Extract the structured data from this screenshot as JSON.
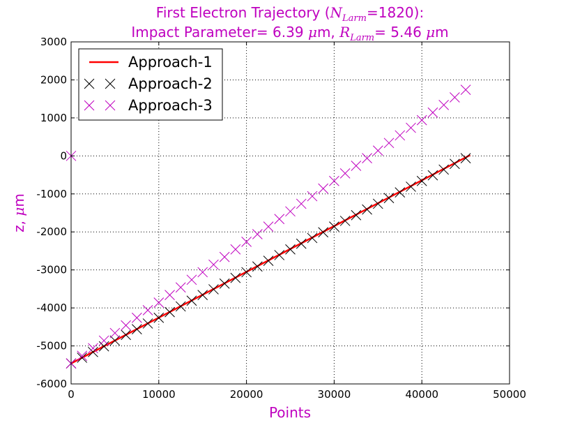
{
  "chart_data": {
    "type": "line",
    "title": {
      "line1_prefix": "First Electron Trajectory (",
      "line1_var": "N",
      "line1_sub": "Larm",
      "line1_eq": "=",
      "line1_value": "1820",
      "line1_suffix": "):",
      "line2_prefix": "Impact Parameter= 6.39 ",
      "line2_unit1_mu": "μ",
      "line2_unit1_m": "m, ",
      "line2_var": "R",
      "line2_sub": "Larm",
      "line2_value": "= 5.46 ",
      "line2_unit2_mu": "μ",
      "line2_unit2_m": "m"
    },
    "xlabel": "Points",
    "ylabel": {
      "text": "z, ",
      "mu": "μ",
      "unit": "m"
    },
    "xlim": [
      0,
      50000
    ],
    "ylim": [
      -6000,
      3000
    ],
    "xticks": [
      0,
      10000,
      20000,
      30000,
      40000,
      50000
    ],
    "yticks": [
      -6000,
      -5000,
      -4000,
      -3000,
      -2000,
      -1000,
      0,
      1000,
      2000,
      3000
    ],
    "grid": true,
    "legend_position": "top-left",
    "series": [
      {
        "name": "Approach-1",
        "style": "line",
        "color": "#ff0000",
        "x": [
          0,
          45500
        ],
        "y": [
          -5460,
          20
        ]
      },
      {
        "name": "Approach-2",
        "style": "x-marker",
        "color": "#000000",
        "x": [
          0,
          1250,
          2500,
          3750,
          5000,
          6250,
          7500,
          8750,
          10000,
          11250,
          12500,
          13750,
          15000,
          16250,
          17500,
          18750,
          20000,
          21250,
          22500,
          23750,
          25000,
          26250,
          27500,
          28750,
          30000,
          31250,
          32500,
          33750,
          35000,
          36250,
          37500,
          38750,
          40000,
          41250,
          42500,
          43750,
          45000
        ],
        "y": [
          -5460,
          -5310,
          -5160,
          -5010,
          -4860,
          -4710,
          -4560,
          -4410,
          -4260,
          -4110,
          -3960,
          -3810,
          -3660,
          -3510,
          -3360,
          -3210,
          -3060,
          -2910,
          -2760,
          -2610,
          -2460,
          -2310,
          -2160,
          -2010,
          -1860,
          -1710,
          -1560,
          -1410,
          -1260,
          -1110,
          -960,
          -810,
          -660,
          -510,
          -360,
          -210,
          -60
        ]
      },
      {
        "name": "Approach-3",
        "style": "x-marker",
        "color": "#bf00bf",
        "x": [
          0,
          1250,
          2500,
          3750,
          5000,
          6250,
          7500,
          8750,
          10000,
          11250,
          12500,
          13750,
          15000,
          16250,
          17500,
          18750,
          20000,
          21250,
          22500,
          23750,
          25000,
          26250,
          27500,
          28750,
          30000,
          31250,
          32500,
          33750,
          35000,
          36250,
          37500,
          38750,
          40000,
          41250,
          42500,
          43750,
          45000
        ],
        "y": [
          -5460,
          -5260,
          -5060,
          -4860,
          -4660,
          -4460,
          -4260,
          -4060,
          -3860,
          -3660,
          -3460,
          -3260,
          -3060,
          -2860,
          -2660,
          -2460,
          -2260,
          -2060,
          -1860,
          -1660,
          -1460,
          -1260,
          -1060,
          -860,
          -660,
          -460,
          -260,
          -60,
          140,
          340,
          540,
          740,
          940,
          1140,
          1340,
          1540,
          1740
        ]
      },
      {
        "name": "",
        "style": "x-marker",
        "color": "#bf00bf",
        "x": [
          0
        ],
        "y": [
          0
        ]
      }
    ]
  }
}
